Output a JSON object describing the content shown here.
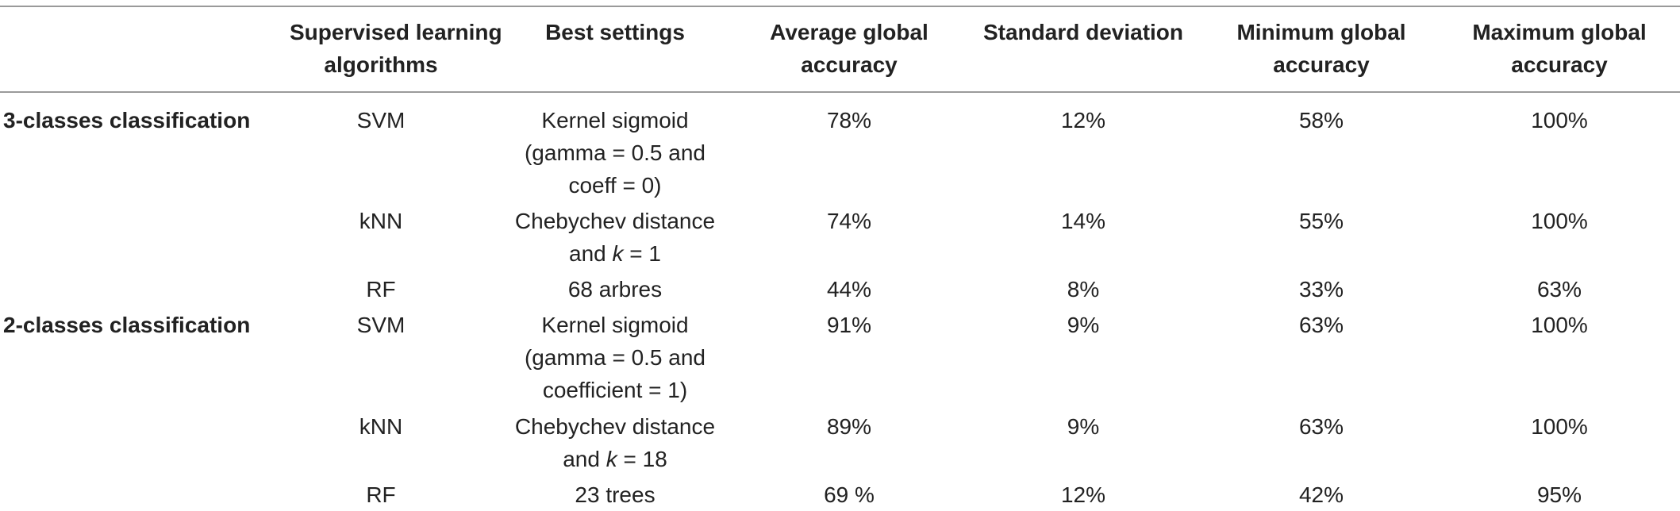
{
  "header": {
    "col1": [
      "Supervised learning",
      "algorithms"
    ],
    "col2": "Best settings",
    "col3": [
      "Average global",
      "accuracy"
    ],
    "col4": "Standard deviation",
    "col5": [
      "Minimum global",
      "accuracy"
    ],
    "col6": [
      "Maximum global",
      "accuracy"
    ]
  },
  "groups": [
    {
      "label": "3-classes classification",
      "rows": [
        {
          "algorithm": "SVM",
          "settings": [
            "Kernel sigmoid",
            "(gamma = 0.5 and",
            "coeff = 0)"
          ],
          "average": "78%",
          "std": "12%",
          "min": "58%",
          "max": "100%"
        },
        {
          "algorithm": "kNN",
          "settings": [
            "Chebychev distance",
            "and k = 1"
          ],
          "average": "74%",
          "std": "14%",
          "min": "55%",
          "max": "100%"
        },
        {
          "algorithm": "RF",
          "settings": [
            "68 arbres"
          ],
          "average": "44%",
          "std": "8%",
          "min": "33%",
          "max": "63%"
        }
      ]
    },
    {
      "label": "2-classes classification",
      "rows": [
        {
          "algorithm": "SVM",
          "settings": [
            "Kernel sigmoid",
            "(gamma = 0.5 and",
            "coefficient = 1)"
          ],
          "average": "91%",
          "std": "9%",
          "min": "63%",
          "max": "100%"
        },
        {
          "algorithm": "kNN",
          "settings": [
            "Chebychev distance",
            "and k = 18"
          ],
          "average": "89%",
          "std": "9%",
          "min": "63%",
          "max": "100%"
        },
        {
          "algorithm": "RF",
          "settings": [
            "23 trees"
          ],
          "average": "69 %",
          "std": "12%",
          "min": "42%",
          "max": "95%"
        }
      ]
    }
  ]
}
